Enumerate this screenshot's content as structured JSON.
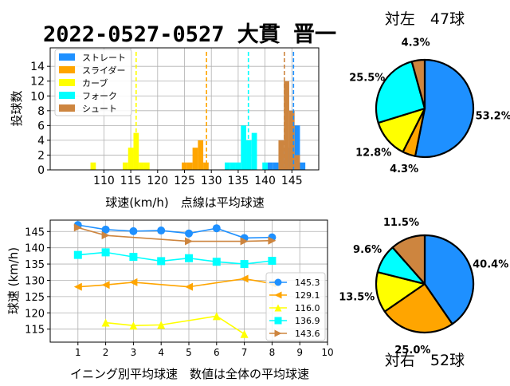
{
  "title": "2022-0527-0527 大貫 晋一",
  "colors": {
    "straight": "#1e90ff",
    "slider": "#ffa500",
    "curve": "#ffff00",
    "fork": "#00ffff",
    "shoot": "#cd853f",
    "grid": "#b0b0b0"
  },
  "chart_data": [
    {
      "id": "histogram",
      "type": "bar",
      "xlabel": "球速(km/h)　点線は平均球速",
      "ylabel": "投球数",
      "xlim": [
        100,
        150
      ],
      "ylim": [
        0,
        16.5
      ],
      "xticks": [
        110,
        115,
        120,
        125,
        130,
        135,
        140,
        145
      ],
      "yticks": [
        0,
        2,
        4,
        6,
        8,
        10,
        12,
        14
      ],
      "grid": true,
      "legend_position": "top-left",
      "series": [
        {
          "name": "ストレート",
          "color": "#1e90ff",
          "mean": 145.3,
          "bins": [
            [
              141,
              1
            ],
            [
              142,
              1
            ],
            [
              143,
              1
            ],
            [
              144,
              3
            ],
            [
              145,
              6
            ],
            [
              146,
              6
            ],
            [
              147,
              1
            ]
          ]
        },
        {
          "name": "スライダー",
          "color": "#ffa500",
          "mean": 129.1,
          "bins": [
            [
              125,
              1
            ],
            [
              126,
              1
            ],
            [
              127,
              3
            ],
            [
              128,
              4
            ],
            [
              129,
              1
            ]
          ]
        },
        {
          "name": "カーブ",
          "color": "#ffff00",
          "mean": 116.0,
          "bins": [
            [
              108,
              1
            ],
            [
              114,
              1
            ],
            [
              115,
              3
            ],
            [
              116,
              5
            ],
            [
              117,
              1
            ],
            [
              118,
              1
            ]
          ]
        },
        {
          "name": "フォーク",
          "color": "#00ffff",
          "mean": 136.9,
          "bins": [
            [
              133,
              1
            ],
            [
              134,
              1
            ],
            [
              135,
              1
            ],
            [
              136,
              6
            ],
            [
              137,
              4
            ],
            [
              138,
              5
            ],
            [
              140,
              1
            ]
          ]
        },
        {
          "name": "シュート",
          "color": "#cd853f",
          "mean": 143.6,
          "bins": [
            [
              143,
              4
            ],
            [
              144,
              12
            ],
            [
              145,
              8
            ],
            [
              146,
              2
            ]
          ]
        }
      ]
    },
    {
      "id": "inning_avg",
      "type": "line",
      "xlabel": "イニング別平均球速　数値は全体の平均球速",
      "ylabel": "球速 (km/h)",
      "xlim": [
        0,
        10
      ],
      "ylim": [
        111,
        148.5
      ],
      "xticks": [
        1,
        2,
        3,
        4,
        5,
        6,
        7,
        8,
        9,
        10
      ],
      "yticks": [
        115,
        120,
        125,
        130,
        135,
        140,
        145
      ],
      "grid": true,
      "legend_position": "center-right",
      "series": [
        {
          "name": "145.3",
          "color": "#1e90ff",
          "marker": "circle",
          "x": [
            1,
            2,
            3,
            4,
            5,
            6,
            7,
            8
          ],
          "y": [
            147.0,
            145.6,
            145.1,
            145.3,
            144.4,
            146.0,
            143.0,
            143.2
          ]
        },
        {
          "name": "129.1",
          "color": "#ffa500",
          "marker": "triangle-left",
          "x": [
            1,
            2,
            3,
            5,
            7,
            8
          ],
          "y": [
            128.0,
            128.6,
            129.4,
            128.0,
            130.5,
            129.0
          ]
        },
        {
          "name": "116.0",
          "color": "#ffff00",
          "marker": "triangle-up",
          "x": [
            2,
            3,
            4,
            6,
            7
          ],
          "y": [
            117.0,
            116.1,
            116.3,
            119.0,
            113.5
          ]
        },
        {
          "name": "136.9",
          "color": "#00ffff",
          "marker": "square",
          "x": [
            1,
            2,
            3,
            4,
            5,
            6,
            7,
            8
          ],
          "y": [
            137.8,
            138.6,
            137.2,
            135.9,
            136.8,
            135.7,
            135.0,
            136.0
          ]
        },
        {
          "name": "143.6",
          "color": "#cd853f",
          "marker": "triangle-right",
          "x": [
            1,
            2,
            5,
            7,
            8
          ],
          "y": [
            146.2,
            143.8,
            142.0,
            142.0,
            142.2
          ]
        }
      ]
    },
    {
      "id": "pie_left",
      "type": "pie",
      "title": "対左　47球",
      "slices": [
        {
          "label": "53.2%",
          "value": 53.2,
          "color": "#1e90ff"
        },
        {
          "label": "4.3%",
          "value": 4.3,
          "color": "#ffa500"
        },
        {
          "label": "12.8%",
          "value": 12.8,
          "color": "#ffff00"
        },
        {
          "label": "25.5%",
          "value": 25.5,
          "color": "#00ffff"
        },
        {
          "label": "4.3%",
          "value": 4.3,
          "color": "#cd853f"
        }
      ]
    },
    {
      "id": "pie_right",
      "type": "pie",
      "title": "対右　52球",
      "slices": [
        {
          "label": "40.4%",
          "value": 40.4,
          "color": "#1e90ff"
        },
        {
          "label": "25.0%",
          "value": 25.0,
          "color": "#ffa500"
        },
        {
          "label": "13.5%",
          "value": 13.5,
          "color": "#ffff00"
        },
        {
          "label": "9.6%",
          "value": 9.6,
          "color": "#00ffff"
        },
        {
          "label": "11.5%",
          "value": 11.5,
          "color": "#cd853f"
        }
      ]
    }
  ]
}
